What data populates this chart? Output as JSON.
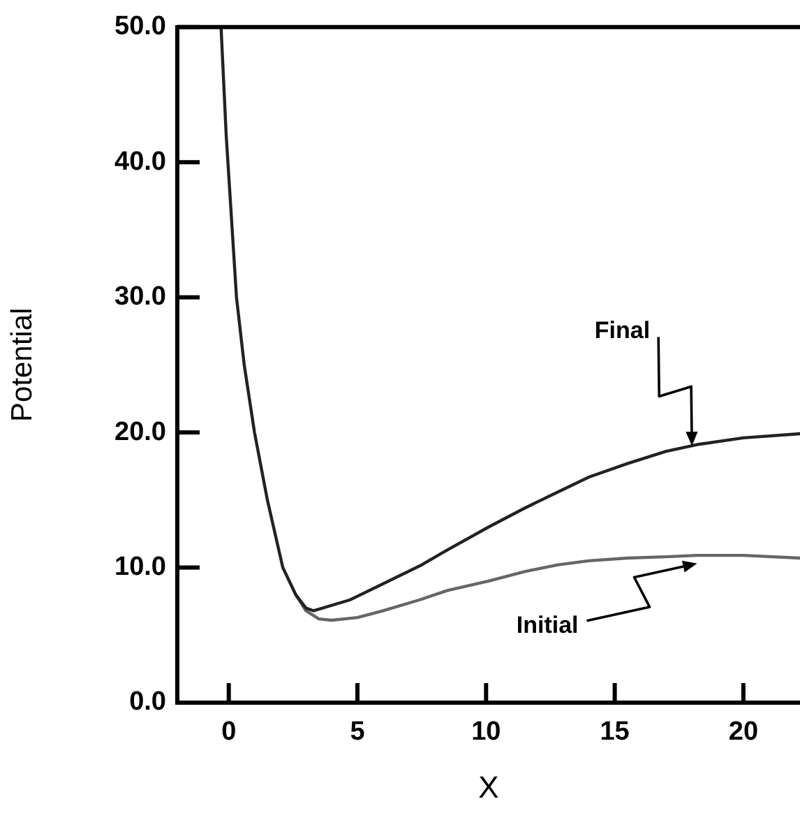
{
  "chart_data": {
    "type": "line",
    "xlabel": "X",
    "ylabel": "Potential",
    "xlim": [
      -2,
      22.2
    ],
    "xticks": [
      0,
      5,
      10,
      15,
      20
    ],
    "ylim": [
      0,
      50
    ],
    "yticks": [
      {
        "value": 0,
        "label": "0.0"
      },
      {
        "value": 10,
        "label": "10.0"
      },
      {
        "value": 20,
        "label": "20.0"
      },
      {
        "value": 30,
        "label": "30.0"
      },
      {
        "value": 40,
        "label": "40.0"
      },
      {
        "value": 50,
        "label": "50.0"
      }
    ],
    "grid": false,
    "legend": false,
    "marker": "none",
    "line_style": "solid",
    "series": [
      {
        "color": "#222222",
        "x": [
          -0.3,
          -0.1,
          0.1,
          0.3,
          0.6,
          1.0,
          1.5,
          2.1,
          2.6,
          3.0,
          3.3,
          4.7,
          6,
          7.5,
          8.4,
          10.1,
          11.5,
          12.8,
          14,
          15.5,
          17,
          18.2,
          20,
          22.2
        ],
        "values": [
          50,
          42,
          36,
          30,
          25,
          20,
          15,
          10,
          8,
          7.0,
          6.8,
          7.6,
          8.8,
          10.2,
          11.2,
          13.0,
          14.4,
          15.6,
          16.7,
          17.7,
          18.6,
          19.1,
          19.6,
          19.9
        ]
      },
      {
        "color": "#666666",
        "x": [
          2.6,
          3.0,
          3.5,
          4,
          5,
          6,
          7.4,
          8.5,
          10.1,
          11.5,
          12.8,
          14,
          15.5,
          17,
          18.2,
          20,
          22.2
        ],
        "values": [
          8,
          6.8,
          6.2,
          6.1,
          6.3,
          6.8,
          7.6,
          8.3,
          9.0,
          9.7,
          10.2,
          10.5,
          10.7,
          10.8,
          10.9,
          10.9,
          10.7
        ]
      }
    ],
    "annotations": [
      {
        "text": "Final",
        "x": 18,
        "y": 19
      },
      {
        "text": "Initial",
        "x": 18.2,
        "y": 10.3
      }
    ]
  }
}
